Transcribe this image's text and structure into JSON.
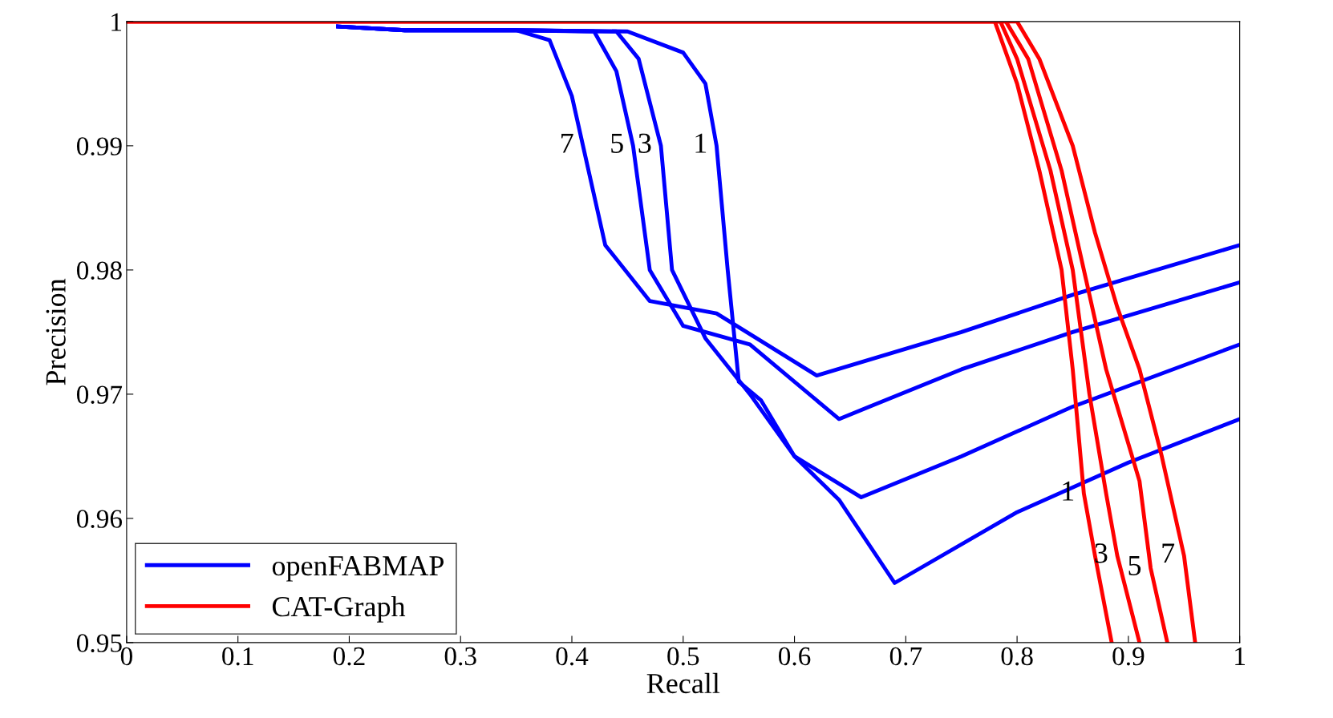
{
  "chart_data": {
    "type": "line",
    "xlabel": "Recall",
    "ylabel": "Precision",
    "xlim": [
      0,
      1
    ],
    "ylim": [
      0.95,
      1
    ],
    "xticks": [
      0,
      {
        "value": 0.1,
        "label": "0.1"
      },
      {
        "value": 0.2,
        "label": "0.2"
      },
      {
        "value": 0.3,
        "label": "0.3"
      },
      {
        "value": 0.4,
        "label": "0.4"
      },
      {
        "value": 0.5,
        "label": "0.5"
      },
      {
        "value": 0.6,
        "label": "0.6"
      },
      {
        "value": 0.7,
        "label": "0.7"
      },
      {
        "value": 0.8,
        "label": "0.8"
      },
      {
        "value": 0.9,
        "label": "0.9"
      },
      1
    ],
    "yticks": [
      {
        "value": 0.95,
        "label": "0.95"
      },
      {
        "value": 0.96,
        "label": "0.96"
      },
      {
        "value": 0.97,
        "label": "0.97"
      },
      {
        "value": 0.98,
        "label": "0.98"
      },
      {
        "value": 0.99,
        "label": "0.99"
      },
      1
    ],
    "grid": false,
    "legend": "bottom left",
    "marker": "none",
    "line_style": "solid",
    "series": [
      {
        "name": "openFABMAP",
        "color": "#0000ff",
        "x": [
          0.19,
          0.25,
          0.35,
          0.45,
          0.5,
          0.52,
          0.53,
          0.54,
          0.55,
          0.57,
          0.6,
          0.64,
          0.69,
          0.8,
          0.9,
          1.0
        ],
        "values": [
          0.9996,
          0.9993,
          0.9993,
          0.9992,
          0.9975,
          0.995,
          0.99,
          0.98,
          0.971,
          0.9695,
          0.965,
          0.9615,
          0.9548,
          0.9605,
          0.9645,
          0.968
        ]
      },
      {
        "color": "#0000ff",
        "x": [
          0.19,
          0.25,
          0.35,
          0.44,
          0.46,
          0.48,
          0.49,
          0.52,
          0.56,
          0.6,
          0.66,
          0.75,
          0.85,
          1.0
        ],
        "values": [
          0.9996,
          0.9993,
          0.9993,
          0.9992,
          0.997,
          0.99,
          0.98,
          0.9745,
          0.97,
          0.965,
          0.9617,
          0.965,
          0.969,
          0.974
        ]
      },
      {
        "color": "#0000ff",
        "x": [
          0.19,
          0.25,
          0.35,
          0.42,
          0.44,
          0.455,
          0.47,
          0.5,
          0.56,
          0.64,
          0.75,
          0.85,
          1.0
        ],
        "values": [
          0.9996,
          0.9993,
          0.9993,
          0.9992,
          0.996,
          0.99,
          0.98,
          0.9755,
          0.974,
          0.968,
          0.972,
          0.975,
          0.979
        ]
      },
      {
        "color": "#0000ff",
        "x": [
          0.19,
          0.25,
          0.35,
          0.38,
          0.4,
          0.41,
          0.43,
          0.47,
          0.53,
          0.62,
          0.75,
          0.85,
          1.0
        ],
        "values": [
          0.9996,
          0.9993,
          0.9993,
          0.9985,
          0.994,
          0.99,
          0.982,
          0.9775,
          0.9765,
          0.9715,
          0.975,
          0.978,
          0.982
        ]
      },
      {
        "name": "CAT-Graph",
        "color": "#ff0000",
        "x": [
          0,
          0.78,
          0.8,
          0.82,
          0.84,
          0.85,
          0.86,
          0.87,
          0.885
        ],
        "values": [
          1.0,
          1.0,
          0.995,
          0.988,
          0.98,
          0.972,
          0.962,
          0.957,
          0.95
        ]
      },
      {
        "color": "#ff0000",
        "x": [
          0,
          0.785,
          0.8,
          0.83,
          0.85,
          0.865,
          0.88,
          0.89,
          0.91
        ],
        "values": [
          1.0,
          1.0,
          0.997,
          0.988,
          0.98,
          0.97,
          0.962,
          0.957,
          0.95
        ]
      },
      {
        "color": "#ff0000",
        "x": [
          0,
          0.79,
          0.81,
          0.84,
          0.86,
          0.88,
          0.91,
          0.92,
          0.935
        ],
        "values": [
          1.0,
          1.0,
          0.997,
          0.988,
          0.98,
          0.972,
          0.963,
          0.956,
          0.95
        ]
      },
      {
        "color": "#ff0000",
        "x": [
          0,
          0.8,
          0.82,
          0.85,
          0.87,
          0.89,
          0.91,
          0.93,
          0.95,
          0.96
        ],
        "values": [
          1.0,
          1.0,
          0.997,
          0.99,
          0.983,
          0.977,
          0.972,
          0.965,
          0.957,
          0.95
        ]
      }
    ],
    "annotations": [
      {
        "text": "7",
        "x": 0.41,
        "y": 0.99
      },
      {
        "text": "5",
        "x": 0.455,
        "y": 0.99
      },
      {
        "text": "3",
        "x": 0.48,
        "y": 0.99
      },
      {
        "text": "1",
        "x": 0.53,
        "y": 0.99
      },
      {
        "text": "1",
        "x": 0.86,
        "y": 0.962
      },
      {
        "text": "3",
        "x": 0.89,
        "y": 0.957
      },
      {
        "text": "5",
        "x": 0.92,
        "y": 0.956
      },
      {
        "text": "7",
        "x": 0.95,
        "y": 0.957
      }
    ]
  }
}
